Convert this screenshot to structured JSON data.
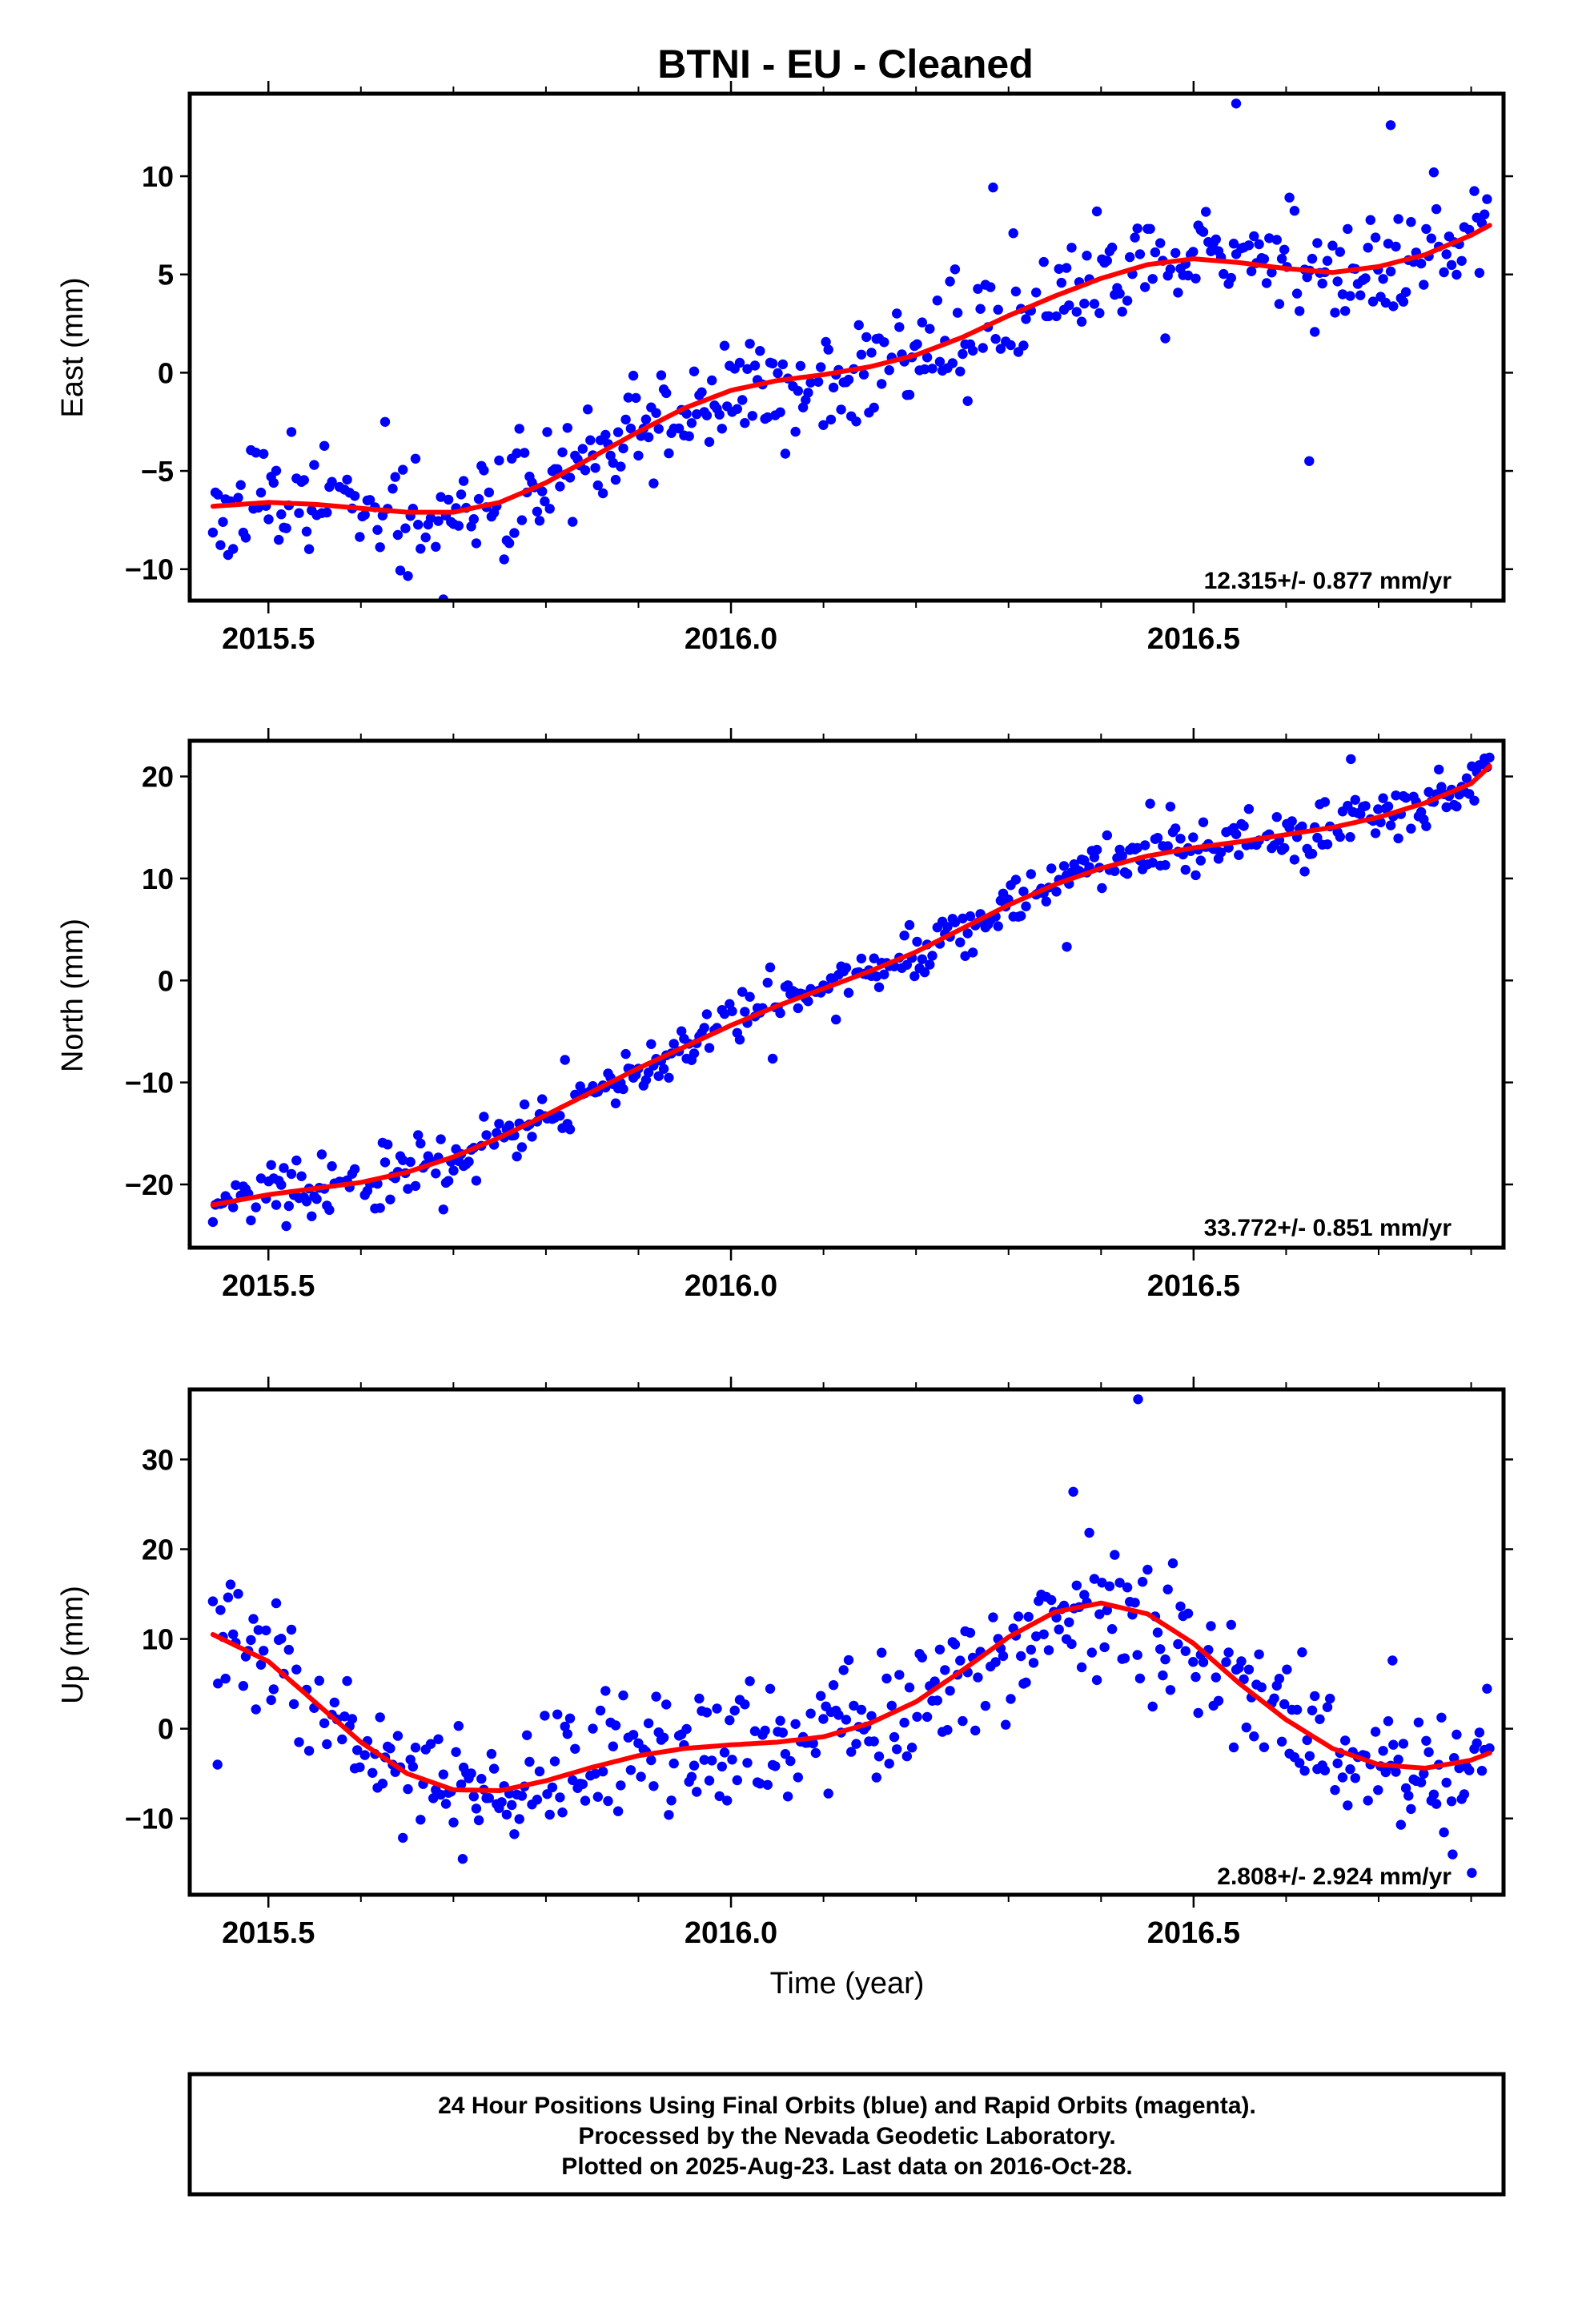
{
  "title": "BTNI  - EU - Cleaned",
  "colors": {
    "points": "#0000ff",
    "fit": "#ff0000",
    "frame": "#000000"
  },
  "chart_data": [
    {
      "type": "scatter",
      "id": "east",
      "ylabel": "East (mm)",
      "xlim": [
        2015.415,
        2016.835
      ],
      "ylim": [
        -11.6,
        14.2
      ],
      "yticks": [
        -10,
        -5,
        0,
        5,
        10
      ],
      "xticks": [
        2015.5,
        2016.0,
        2016.5
      ],
      "xtick_labels": [
        "2015.5",
        "2016.0",
        "2016.5"
      ],
      "rate_text": "12.315+/- 0.877 mm/yr",
      "fit": {
        "x": [
          2015.44,
          2015.5,
          2015.55,
          2015.6,
          2015.65,
          2015.7,
          2015.75,
          2015.8,
          2015.85,
          2015.9,
          2015.95,
          2016.0,
          2016.05,
          2016.1,
          2016.15,
          2016.2,
          2016.25,
          2016.3,
          2016.35,
          2016.4,
          2016.45,
          2016.5,
          2016.55,
          2016.6,
          2016.65,
          2016.7,
          2016.75,
          2016.8,
          2016.82
        ],
        "y": [
          -6.8,
          -6.6,
          -6.7,
          -6.9,
          -7.1,
          -7.1,
          -6.6,
          -5.6,
          -4.3,
          -3.0,
          -1.8,
          -0.9,
          -0.4,
          -0.1,
          0.3,
          0.9,
          1.8,
          2.9,
          3.9,
          4.8,
          5.5,
          5.8,
          5.6,
          5.3,
          5.1,
          5.4,
          6.0,
          7.0,
          7.5
        ]
      },
      "noise": {
        "sd": 1.4,
        "seed": 11
      },
      "outliers": {
        "x": [
          2016.546,
          2016.625,
          2016.713
        ],
        "y": [
          13.7,
          -4.5,
          12.6
        ]
      }
    },
    {
      "type": "scatter",
      "id": "north",
      "ylabel": "North (mm)",
      "xlim": [
        2015.415,
        2016.835
      ],
      "ylim": [
        -26.2,
        23.5
      ],
      "yticks": [
        -20,
        -10,
        0,
        10,
        20
      ],
      "xticks": [
        2015.5,
        2016.0,
        2016.5
      ],
      "xtick_labels": [
        "2015.5",
        "2016.0",
        "2016.5"
      ],
      "rate_text": "33.772+/- 0.851 mm/yr",
      "fit": {
        "x": [
          2015.44,
          2015.5,
          2015.55,
          2015.6,
          2015.65,
          2015.7,
          2015.75,
          2015.8,
          2015.85,
          2015.9,
          2015.95,
          2016.0,
          2016.05,
          2016.1,
          2016.15,
          2016.2,
          2016.25,
          2016.3,
          2016.35,
          2016.4,
          2016.45,
          2016.5,
          2016.55,
          2016.6,
          2016.65,
          2016.7,
          2016.75,
          2016.8,
          2016.82
        ],
        "y": [
          -22.0,
          -21.0,
          -20.4,
          -19.8,
          -18.8,
          -17.3,
          -15.4,
          -13.2,
          -10.9,
          -8.6,
          -6.5,
          -4.4,
          -2.5,
          -0.8,
          0.9,
          2.8,
          5.1,
          7.4,
          9.4,
          11.0,
          12.2,
          13.0,
          13.6,
          14.3,
          15.0,
          16.0,
          17.4,
          19.3,
          21.0
        ]
      },
      "noise": {
        "sd": 1.3,
        "seed": 23
      },
      "outliers": {
        "x": [
          2016.363,
          2016.67
        ],
        "y": [
          3.3,
          21.7
        ]
      }
    },
    {
      "type": "scatter",
      "id": "up",
      "ylabel": "Up (mm)",
      "xlabel": "Time (year)",
      "xlim": [
        2015.415,
        2016.835
      ],
      "ylim": [
        -18.5,
        37.8
      ],
      "yticks": [
        -10,
        0,
        10,
        20,
        30
      ],
      "xticks": [
        2015.5,
        2016.0,
        2016.5
      ],
      "xtick_labels": [
        "2015.5",
        "2016.0",
        "2016.5"
      ],
      "rate_text": "2.808+/- 2.924 mm/yr",
      "fit": {
        "x": [
          2015.44,
          2015.5,
          2015.55,
          2015.6,
          2015.65,
          2015.7,
          2015.75,
          2015.8,
          2015.85,
          2015.9,
          2015.95,
          2016.0,
          2016.05,
          2016.1,
          2016.15,
          2016.2,
          2016.25,
          2016.3,
          2016.35,
          2016.4,
          2016.45,
          2016.5,
          2016.55,
          2016.6,
          2016.65,
          2016.7,
          2016.75,
          2016.8,
          2016.82
        ],
        "y": [
          10.5,
          7.5,
          3.0,
          -1.5,
          -5.0,
          -6.8,
          -6.9,
          -5.8,
          -4.3,
          -3.0,
          -2.2,
          -1.8,
          -1.5,
          -0.9,
          0.6,
          3.0,
          6.5,
          10.2,
          13.0,
          14.0,
          12.8,
          9.5,
          5.0,
          1.0,
          -2.2,
          -4.0,
          -4.4,
          -3.5,
          -2.7
        ]
      },
      "noise": {
        "sd": 3.4,
        "seed": 37
      },
      "outliers": {
        "x": [
          2016.44,
          2016.37,
          2015.445,
          2015.71,
          2016.715,
          2016.78
        ],
        "y": [
          36.7,
          26.4,
          -4.0,
          -14.5,
          7.6,
          -14.0
        ]
      }
    }
  ],
  "footer": {
    "line1": "24 Hour Positions Using Final Orbits (blue) and Rapid Orbits (magenta).",
    "line2": "Processed by the Nevada Geodetic Laboratory.",
    "line3": "Plotted on 2025-Aug-23. Last data on 2016-Oct-28."
  }
}
